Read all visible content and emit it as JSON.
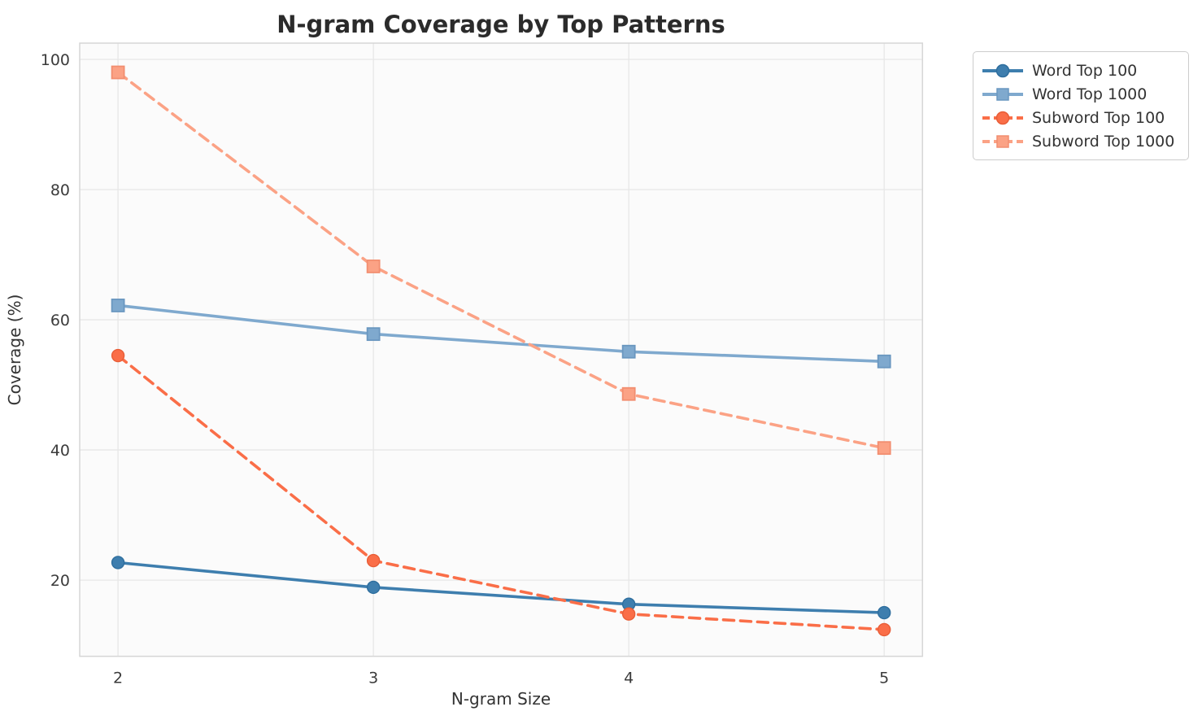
{
  "chart": {
    "title": "N-gram Coverage by Top Patterns",
    "xlabel": "N-gram Size",
    "ylabel": "Coverage (%)"
  },
  "chart_data": {
    "type": "line",
    "title": "N-gram Coverage by Top Patterns",
    "xlabel": "N-gram Size",
    "ylabel": "Coverage (%)",
    "x": [
      2,
      3,
      4,
      5
    ],
    "xticks": [
      "2",
      "3",
      "4",
      "5"
    ],
    "yticks": [
      20,
      40,
      60,
      80,
      100
    ],
    "xlim": [
      1.85,
      5.15
    ],
    "ylim": [
      8.3,
      102.5
    ],
    "grid": true,
    "legend_position": "upper right outside plot",
    "series": [
      {
        "name": "Word Top 100",
        "values": [
          22.7,
          18.9,
          16.3,
          15.0
        ],
        "color": "#3E7EAE",
        "edge_color": "#2E6E9E",
        "marker": "circle",
        "line_style": "solid"
      },
      {
        "name": "Word Top 1000",
        "values": [
          62.2,
          57.8,
          55.1,
          53.6
        ],
        "color": "#7FA9CE",
        "edge_color": "#6A97C0",
        "marker": "square",
        "line_style": "solid"
      },
      {
        "name": "Subword Top 100",
        "values": [
          54.5,
          23.0,
          14.8,
          12.4
        ],
        "color": "#FA6E48",
        "edge_color": "#E85E38",
        "marker": "circle",
        "line_style": "dashed"
      },
      {
        "name": "Subword Top 1000",
        "values": [
          98.0,
          68.2,
          48.6,
          40.3
        ],
        "color": "#FBA285",
        "edge_color": "#F28E70",
        "marker": "square",
        "line_style": "dashed"
      }
    ],
    "style": {
      "plot_bg": "#fbfbfb",
      "grid_color": "#e7e7e7",
      "spine_color": "#d6d6d6"
    }
  }
}
